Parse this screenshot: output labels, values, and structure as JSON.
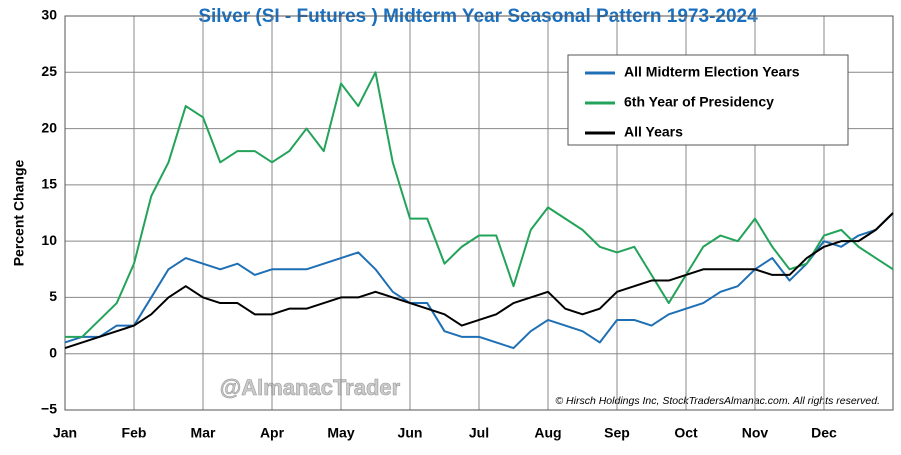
{
  "chart_data": {
    "type": "line",
    "title": "Silver (SI - Futures ) Midterm Year Seasonal Pattern 1973-2024",
    "y_label": "Percent Change",
    "watermark": "@AlmanacTrader",
    "copyright": "© Hirsch Holdings Inc, StockTradersAlmanac.com. All rights reserved.",
    "categories": [
      "Jan",
      null,
      null,
      null,
      "Feb",
      null,
      null,
      null,
      "Mar",
      null,
      null,
      null,
      "Apr",
      null,
      null,
      null,
      "May",
      null,
      null,
      null,
      "Jun",
      null,
      null,
      null,
      "Jul",
      null,
      null,
      null,
      "Aug",
      null,
      null,
      null,
      "Sep",
      null,
      null,
      null,
      "Oct",
      null,
      null,
      null,
      "Nov",
      null,
      null,
      null,
      "Dec",
      null,
      null,
      null,
      null
    ],
    "series": [
      {
        "name": "All Midterm Election Years",
        "color": "#1f6fb5",
        "values": [
          1,
          1.5,
          1.5,
          2.5,
          2.5,
          5,
          7.5,
          8.5,
          8,
          7.5,
          8,
          7,
          7.5,
          7.5,
          7.5,
          8,
          8.5,
          9,
          7.5,
          5.5,
          4.5,
          4.5,
          2,
          1.5,
          1.5,
          1,
          0.5,
          2,
          3,
          2.5,
          2,
          1,
          3,
          3,
          2.5,
          3.5,
          4,
          4.5,
          5.5,
          6,
          7.5,
          8.5,
          6.5,
          8,
          10,
          9.5,
          10.5,
          11,
          12.5
        ]
      },
      {
        "name": "6th Year of Presidency",
        "color": "#23a35a",
        "values": [
          1.5,
          1.5,
          3,
          4.5,
          8,
          14,
          17,
          22,
          21,
          17,
          18,
          18,
          17,
          18,
          20,
          18,
          24,
          22,
          25,
          17,
          12,
          12,
          8,
          9.5,
          10.5,
          10.5,
          6,
          11,
          13,
          12,
          11,
          9.5,
          9,
          9.5,
          7,
          4.5,
          7,
          9.5,
          10.5,
          10,
          12,
          9.5,
          7.5,
          8,
          10.5,
          11,
          9.5,
          8.5,
          7.5
        ]
      },
      {
        "name": "All Years",
        "color": "#000000",
        "values": [
          0.5,
          1,
          1.5,
          2,
          2.5,
          3.5,
          5,
          6,
          5,
          4.5,
          4.5,
          3.5,
          3.5,
          4,
          4,
          4.5,
          5,
          5,
          5.5,
          5,
          4.5,
          4,
          3.5,
          2.5,
          3,
          3.5,
          4.5,
          5,
          5.5,
          4,
          3.5,
          4,
          5.5,
          6,
          6.5,
          6.5,
          7,
          7.5,
          7.5,
          7.5,
          7.5,
          7,
          7,
          8.5,
          9.5,
          10,
          10,
          11,
          12.5
        ]
      }
    ],
    "ylim": [
      -5,
      30
    ],
    "yticks": [
      {
        "value": -5,
        "label": "−5"
      },
      0,
      5,
      10,
      15,
      20,
      25,
      30
    ],
    "grid": true
  }
}
